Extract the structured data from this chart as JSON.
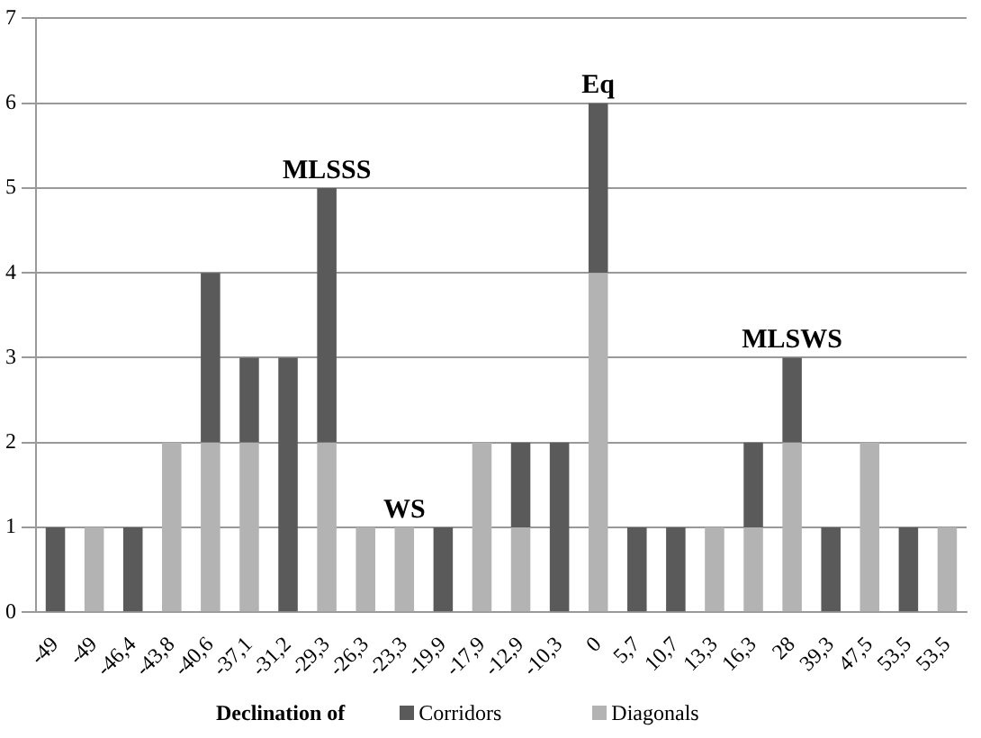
{
  "chart_data": {
    "type": "bar",
    "stacked": true,
    "xlabel": "Declination of",
    "categories": [
      "-49",
      "-49",
      "-46,4",
      "-43,8",
      "-40,6",
      "-37,1",
      "-31,2",
      "-29,3",
      "-26,3",
      "-23,3",
      "-19,9",
      "-17,9",
      "-12,9",
      "-10,3",
      "0",
      "5,7",
      "10,7",
      "13,3",
      "16,3",
      "28",
      "39,3",
      "47,5",
      "53,5",
      "53,5"
    ],
    "series": [
      {
        "name": "Diagonals",
        "color": "#b3b3b3",
        "values": [
          0,
          1,
          0,
          2,
          2,
          2,
          0,
          2,
          1,
          1,
          0,
          2,
          1,
          0,
          4,
          0,
          0,
          1,
          1,
          2,
          0,
          2,
          0,
          1
        ]
      },
      {
        "name": "Corridors",
        "color": "#5a5a5a",
        "values": [
          1,
          0,
          1,
          0,
          2,
          1,
          3,
          3,
          0,
          0,
          1,
          0,
          1,
          2,
          2,
          1,
          1,
          0,
          1,
          1,
          1,
          0,
          1,
          0
        ]
      }
    ],
    "ylim": [
      0,
      7
    ],
    "yticks": [
      0,
      1,
      2,
      3,
      4,
      5,
      6,
      7
    ],
    "grid": "y",
    "legend": "bottom",
    "annotations": [
      {
        "text": "MLSSS",
        "x": "-29,3",
        "y": 5
      },
      {
        "text": "WS",
        "x": "-23,3",
        "y": 1
      },
      {
        "text": "Eq",
        "x": "0",
        "y": 6
      },
      {
        "text": "MLSWS",
        "x": "28",
        "y": 3
      }
    ]
  }
}
